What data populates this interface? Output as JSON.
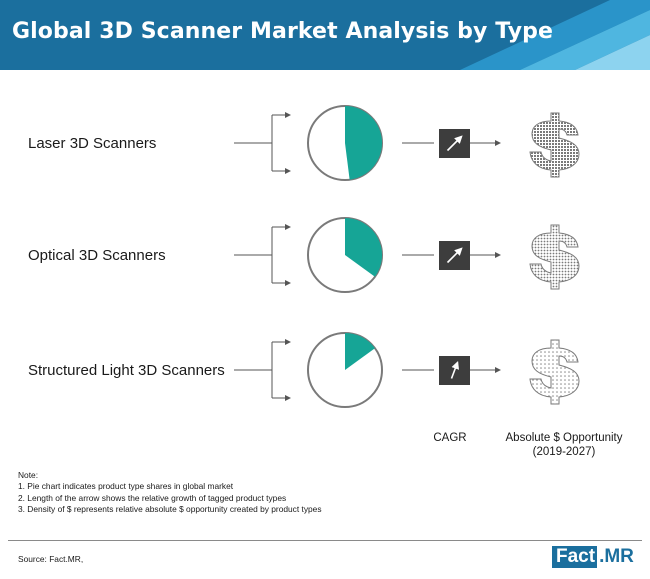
{
  "header": {
    "title": "Global 3D Scanner Market Analysis by Type",
    "bg_color": "#1b6f9e",
    "stripe_colors": [
      "#2a94c9",
      "#4fb6e0",
      "#8dd3ef"
    ]
  },
  "chart_data": {
    "type": "pie",
    "rows": [
      {
        "label": "Laser 3D Scanners",
        "share": 0.48,
        "cagr_arrow": "long",
        "dollar_density": "high"
      },
      {
        "label": "Optical 3D Scanners",
        "share": 0.35,
        "cagr_arrow": "long",
        "dollar_density": "medium"
      },
      {
        "label": "Structured Light 3D Scanners",
        "share": 0.15,
        "cagr_arrow": "short",
        "dollar_density": "low"
      }
    ],
    "columns": {
      "cagr": "CAGR",
      "opportunity_line1": "Absolute $ Opportunity",
      "opportunity_line2": "(2019-2027)"
    },
    "pie_color": "#16a596",
    "arrow_box_color": "#3d3d3d"
  },
  "notes": {
    "heading": "Note:",
    "items": [
      "1. Pie chart indicates product type shares in global market",
      "2. Length of the arrow shows the relative growth of tagged product types",
      "3. Density of $ represents relative absolute $ opportunity created by product types"
    ]
  },
  "source": "Source: Fact.MR,",
  "logo": {
    "part1": "Fact",
    "part2": ".MR"
  }
}
